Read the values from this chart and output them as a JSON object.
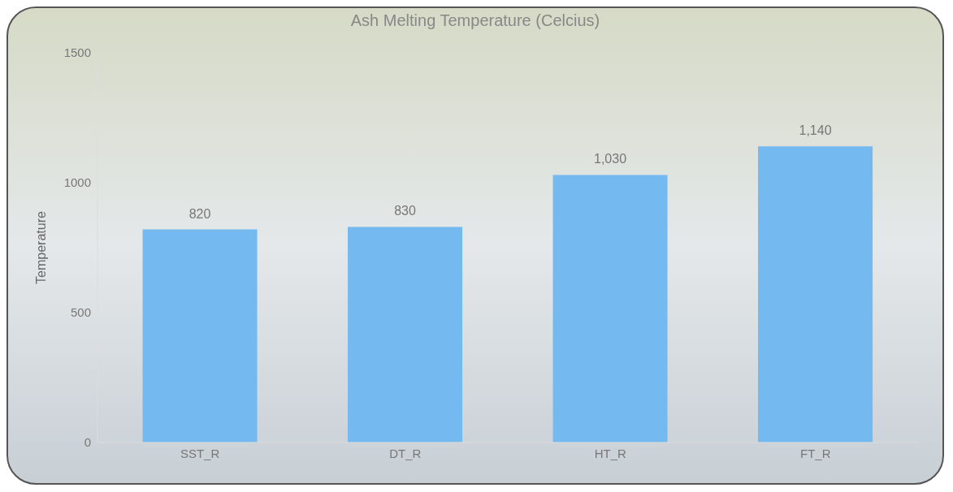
{
  "chart_data": {
    "type": "bar",
    "title": "Ash Melting Temperature (Celcius)",
    "ylabel": "Temperature",
    "categories": [
      "SST_R",
      "DT_R",
      "HT_R",
      "FT_R"
    ],
    "values": [
      820,
      830,
      1030,
      1140
    ],
    "value_labels": [
      "820",
      "830",
      "1,030",
      "1,140"
    ],
    "color": "#74b9f0",
    "ylim": [
      0,
      1500
    ],
    "yticks": [
      0,
      500,
      1000,
      1500
    ],
    "grid": false
  }
}
